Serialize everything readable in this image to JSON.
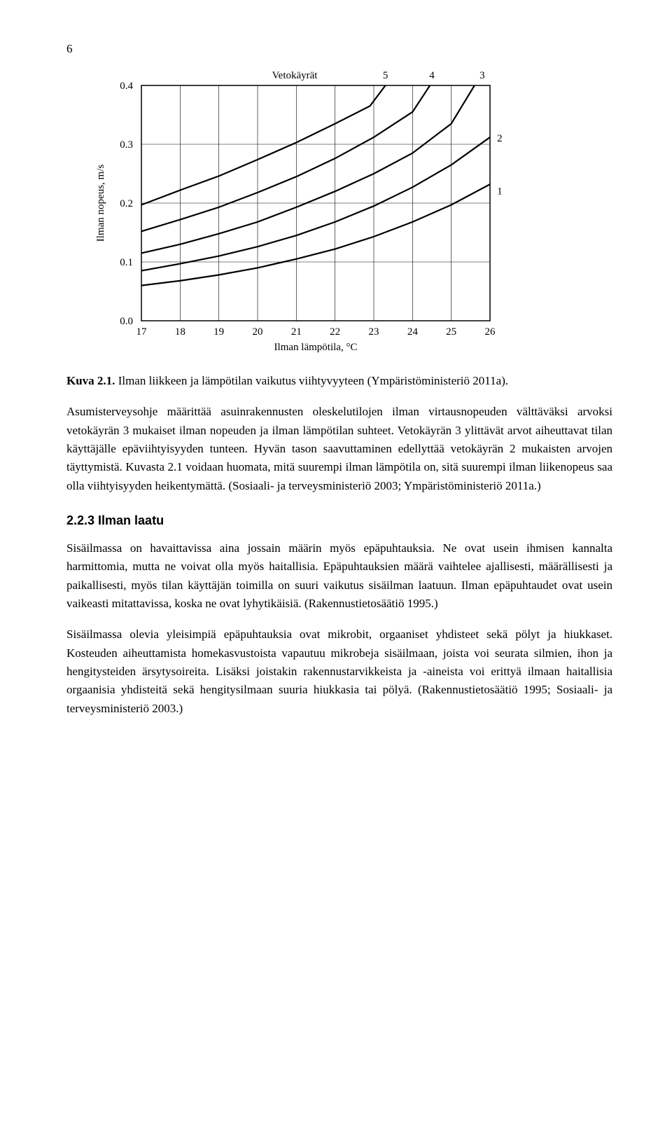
{
  "page_number": "6",
  "chart": {
    "type": "line",
    "title": "Vetokäyrät",
    "x_label": "Ilman lämpötila, °C",
    "y_label": "Ilman nopeus, m/s",
    "xlim": [
      17,
      26
    ],
    "ylim": [
      0.0,
      0.4
    ],
    "x_ticks": [
      "17",
      "18",
      "19",
      "20",
      "21",
      "22",
      "23",
      "24",
      "25",
      "26"
    ],
    "y_ticks": [
      "0.0",
      "0.1",
      "0.2",
      "0.3",
      "0.4"
    ],
    "curve_labels": [
      "5",
      "4",
      "3",
      "2",
      "1"
    ],
    "curve_label_positions": [
      {
        "x": 23.3,
        "y": 0.426
      },
      {
        "x": 24.5,
        "y": 0.426
      },
      {
        "x": 25.8,
        "y": 0.423
      },
      {
        "x": 26.25,
        "y": 0.305
      },
      {
        "x": 26.25,
        "y": 0.215
      }
    ],
    "background_color": "#ffffff",
    "grid_color": "#000000",
    "axis_color": "#000000",
    "curve_color": "#000000",
    "curve_width": 2.2,
    "grid_width": 0.6,
    "axis_width": 1.5,
    "axis_fontsize": 15,
    "tick_fontsize": 15,
    "series": [
      {
        "name": "5",
        "points": [
          [
            17,
            0.197
          ],
          [
            18,
            0.222
          ],
          [
            19,
            0.246
          ],
          [
            20,
            0.274
          ],
          [
            21,
            0.303
          ],
          [
            22,
            0.335
          ],
          [
            22.9,
            0.365
          ],
          [
            23.3,
            0.4
          ]
        ]
      },
      {
        "name": "4",
        "points": [
          [
            17,
            0.152
          ],
          [
            18,
            0.172
          ],
          [
            19,
            0.193
          ],
          [
            20,
            0.218
          ],
          [
            21,
            0.245
          ],
          [
            22,
            0.276
          ],
          [
            23,
            0.312
          ],
          [
            24,
            0.355
          ],
          [
            24.45,
            0.4
          ]
        ]
      },
      {
        "name": "3",
        "points": [
          [
            17,
            0.115
          ],
          [
            18,
            0.13
          ],
          [
            19,
            0.148
          ],
          [
            20,
            0.168
          ],
          [
            21,
            0.193
          ],
          [
            22,
            0.22
          ],
          [
            23,
            0.25
          ],
          [
            24,
            0.285
          ],
          [
            25,
            0.335
          ],
          [
            25.6,
            0.4
          ]
        ]
      },
      {
        "name": "2",
        "points": [
          [
            17,
            0.085
          ],
          [
            18,
            0.097
          ],
          [
            19,
            0.11
          ],
          [
            20,
            0.126
          ],
          [
            21,
            0.145
          ],
          [
            22,
            0.168
          ],
          [
            23,
            0.195
          ],
          [
            24,
            0.227
          ],
          [
            25,
            0.265
          ],
          [
            26,
            0.312
          ]
        ]
      },
      {
        "name": "1",
        "points": [
          [
            17,
            0.06
          ],
          [
            18,
            0.068
          ],
          [
            19,
            0.078
          ],
          [
            20,
            0.09
          ],
          [
            21,
            0.105
          ],
          [
            22,
            0.122
          ],
          [
            23,
            0.143
          ],
          [
            24,
            0.168
          ],
          [
            25,
            0.197
          ],
          [
            26,
            0.232
          ]
        ]
      }
    ]
  },
  "caption_bold": "Kuva 2.1.",
  "caption_rest": " Ilman liikkeen ja lämpötilan vaikutus viihtyvyyteen (Ympäristöministeriö 2011a).",
  "para1": "Asumisterveysohje määrittää asuinrakennusten oleskelutilojen ilman virtausnopeuden välttäväksi arvoksi vetokäyrän 3 mukaiset ilman nopeuden ja ilman lämpötilan suhteet. Vetokäyrän 3 ylittävät arvot aiheuttavat tilan käyttäjälle epäviihtyisyyden tunteen. Hyvän tason saavuttaminen edellyttää vetokäyrän 2 mukaisten arvojen täyttymistä. Kuvasta 2.1 voidaan huomata, mitä suurempi ilman lämpötila on, sitä suurempi ilman liikenopeus saa olla viihtyisyyden heikentymättä. (Sosiaali- ja terveysministeriö 2003; Ympäristöministeriö 2011a.)",
  "section_heading": "2.2.3  Ilman laatu",
  "para2": "Sisäilmassa on havaittavissa aina jossain määrin myös epäpuhtauksia. Ne ovat usein ihmisen kannalta harmittomia, mutta ne voivat olla myös haitallisia. Epäpuhtauksien määrä vaihtelee ajallisesti, määrällisesti ja paikallisesti, myös tilan käyttäjän toimilla on suuri vaikutus sisäilman laatuun. Ilman epäpuhtaudet ovat usein vaikeasti mitattavissa, koska ne ovat lyhytikäisiä. (Rakennustietosäätiö 1995.)",
  "para3": "Sisäilmassa olevia yleisimpiä epäpuhtauksia ovat mikrobit, orgaaniset yhdisteet sekä pölyt ja hiukkaset. Kosteuden aiheuttamista homekasvustoista vapautuu mikrobeja sisäilmaan, joista voi seurata silmien, ihon ja hengitysteiden ärsytysoireita. Lisäksi joistakin rakennustarvikkeista ja -aineista voi erittyä ilmaan haitallisia orgaanisia yhdisteitä sekä hengitysilmaan suuria hiukkasia tai pölyä. (Rakennustietosäätiö 1995; Sosiaali- ja terveysministeriö 2003.)"
}
